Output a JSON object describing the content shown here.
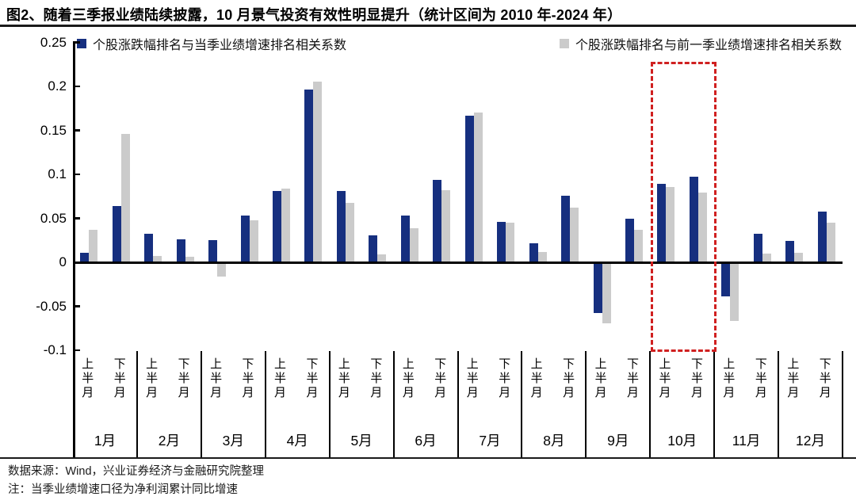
{
  "header": {
    "title": "图2、随着三季报业绩陆续披露，10 月景气投资有效性明显提升（统计区间为 2010 年-2024 年）"
  },
  "footer": {
    "source": "数据来源：Wind，兴业证券经济与金融研究院整理",
    "note": "注：当季业绩增速口径为净利润累计同比增速"
  },
  "colors": {
    "series_current": "#162f7f",
    "series_previous": "#cbcbcb",
    "highlight": "#d02020",
    "axis": "#000000"
  },
  "chart_data": {
    "type": "bar",
    "title": "",
    "xlabel": "",
    "ylabel": "",
    "months": [
      "1月",
      "2月",
      "3月",
      "4月",
      "5月",
      "6月",
      "7月",
      "8月",
      "9月",
      "10月",
      "11月",
      "12月"
    ],
    "half_month_labels": [
      "上半月",
      "下半月"
    ],
    "categories": [
      "1月上半月",
      "1月下半月",
      "2月上半月",
      "2月下半月",
      "3月上半月",
      "3月下半月",
      "4月上半月",
      "4月下半月",
      "5月上半月",
      "5月下半月",
      "6月上半月",
      "6月下半月",
      "7月上半月",
      "7月下半月",
      "8月上半月",
      "8月下半月",
      "9月上半月",
      "9月下半月",
      "10月上半月",
      "10月下半月",
      "11月上半月",
      "11月下半月",
      "12月上半月",
      "12月下半月"
    ],
    "series": [
      {
        "name": "个股涨跌幅排名与当季业绩增速排名相关系数",
        "color": "#162f7f",
        "values": [
          0.011,
          0.064,
          0.032,
          0.026,
          0.025,
          0.053,
          0.081,
          0.196,
          0.081,
          0.031,
          0.053,
          0.094,
          0.167,
          0.046,
          0.022,
          0.076,
          -0.056,
          0.05,
          0.089,
          0.097,
          -0.037,
          0.032,
          0.024,
          0.058
        ]
      },
      {
        "name": "个股涨跌幅排名与前一季业绩增速排名相关系数",
        "color": "#cbcbcb",
        "values": [
          0.037,
          0.146,
          0.007,
          0.006,
          -0.015,
          0.048,
          0.084,
          0.205,
          0.068,
          0.009,
          0.039,
          0.082,
          0.17,
          0.045,
          0.012,
          0.062,
          -0.068,
          0.037,
          0.086,
          0.079,
          -0.065,
          0.01,
          0.011,
          0.045
        ]
      }
    ],
    "ylim": [
      -0.1,
      0.25
    ],
    "yticks": [
      0.25,
      0.2,
      0.15,
      0.1,
      0.05,
      0,
      -0.05,
      -0.1
    ],
    "ytick_labels": [
      "0.25",
      "0.2",
      "0.15",
      "0.1",
      "0.05",
      "0",
      "-0.05",
      "-0.1"
    ],
    "grid": false,
    "legend_position": "top",
    "highlight_box": {
      "month": "10月",
      "style": "dashed",
      "color": "#d02020"
    }
  }
}
